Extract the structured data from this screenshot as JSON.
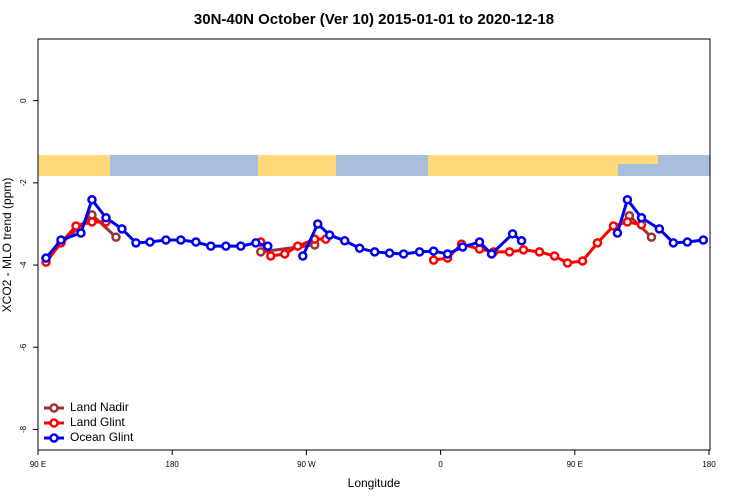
{
  "chart_data": {
    "type": "line",
    "title": "30N-40N October (Ver 10)   2015-01-01 to 2020-12-18",
    "x_label": "Longitude",
    "y_label": "XCO2 - MLO trend (ppm)",
    "xlim": [
      90,
      540
    ],
    "ylim": [
      -8.5,
      1.5
    ],
    "xticks": [
      {
        "value": 90,
        "label": "90 E"
      },
      180,
      {
        "value": 270,
        "label": "90 W"
      },
      {
        "value": 360,
        "label": "0"
      },
      {
        "value": 450,
        "label": "90 E"
      },
      {
        "value": 540,
        "label": "180"
      }
    ],
    "yticks": [
      -8,
      -6,
      -4,
      -2,
      0
    ],
    "legend": "bottom-left",
    "series": [
      {
        "name": "Land Nadir",
        "color": "#993333",
        "x": [
          95.4,
          126.2,
          142.3,
          null,
          239.4,
          275.6,
          null,
          486.6,
          501.4
        ],
        "values": [
          -3.83,
          -2.78,
          -3.32,
          null,
          -3.68,
          -3.51,
          null,
          -2.8,
          -3.32
        ]
      },
      {
        "name": "Land Glint",
        "color": "#ff0000",
        "x": [
          95.4,
          105.4,
          115.5,
          126.2,
          135.6,
          null,
          239.4,
          246.1,
          255.5,
          264.2,
          275.6,
          283,
          null,
          355.3,
          364.7,
          374.1,
          386.1,
          395.5,
          406.2,
          415.6,
          426.3,
          436.4,
          445.1,
          455.2,
          465.2,
          475.9,
          485.3,
          494.7
        ],
        "values": [
          -3.93,
          -3.46,
          -3.05,
          -2.95,
          -2.95,
          null,
          -3.44,
          -3.78,
          -3.73,
          -3.54,
          -3.37,
          -3.37,
          null,
          -3.88,
          -3.83,
          -3.49,
          -3.61,
          -3.68,
          -3.68,
          -3.63,
          -3.68,
          -3.78,
          -3.95,
          -3.9,
          -3.46,
          -3.05,
          -2.95,
          -3.02
        ]
      },
      {
        "name": "Ocean Glint",
        "color": "#0000ee",
        "x": [
          95.4,
          105.4,
          118.8,
          126.2,
          135.6,
          146.3,
          155.7,
          165.1,
          175.8,
          185.8,
          195.9,
          205.9,
          216,
          226,
          236.1,
          244.1,
          null,
          267.6,
          277.6,
          285.6,
          295.7,
          305.7,
          315.8,
          325.8,
          335.2,
          345.9,
          355.3,
          364.7,
          374.8,
          386.1,
          394.2,
          408.3,
          414.3,
          null,
          478.6,
          485.3,
          494.7,
          506.7,
          516.1,
          525.5,
          536.2
        ],
        "values": [
          -3.83,
          -3.39,
          -3.22,
          -2.41,
          -2.85,
          -3.12,
          -3.46,
          -3.44,
          -3.39,
          -3.39,
          -3.44,
          -3.54,
          -3.54,
          -3.54,
          -3.46,
          -3.54,
          null,
          -3.78,
          -3.0,
          -3.27,
          -3.41,
          -3.59,
          -3.68,
          -3.71,
          -3.73,
          -3.68,
          -3.66,
          -3.73,
          -3.56,
          -3.44,
          -3.73,
          -3.24,
          -3.41,
          null,
          -3.22,
          -2.41,
          -2.85,
          -3.12,
          -3.46,
          -3.44,
          -3.39
        ]
      }
    ]
  }
}
